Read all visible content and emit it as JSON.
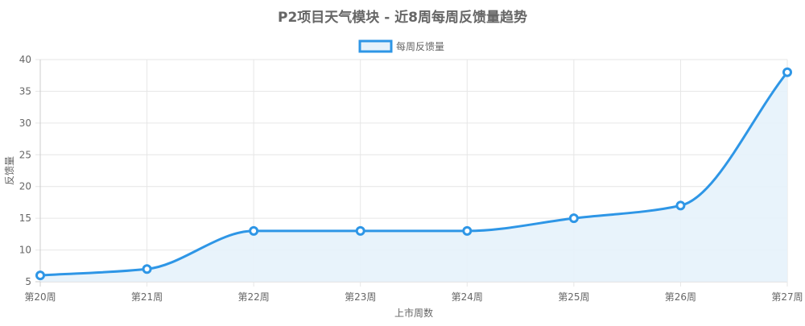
{
  "colors": {
    "line": "#2e96e6",
    "fill": "#e6f2fb",
    "point_fill": "#ffffff",
    "grid": "#e6e6e6",
    "text": "#666666"
  },
  "chart_data": {
    "type": "area",
    "title": "P2项目天气模块 - 近8周每周反馈量趋势",
    "xlabel": "上市周数",
    "ylabel": "反馈量",
    "categories": [
      "第20周",
      "第21周",
      "第22周",
      "第23周",
      "第24周",
      "第25周",
      "第26周",
      "第27周"
    ],
    "series": [
      {
        "name": "每周反馈量",
        "values": [
          6,
          7,
          13,
          13,
          13,
          15,
          17,
          38
        ]
      }
    ],
    "ylim": [
      5,
      40
    ],
    "yticks": [
      5,
      10,
      15,
      20,
      25,
      30,
      35,
      40
    ],
    "grid": true,
    "legend_position": "top-center"
  }
}
